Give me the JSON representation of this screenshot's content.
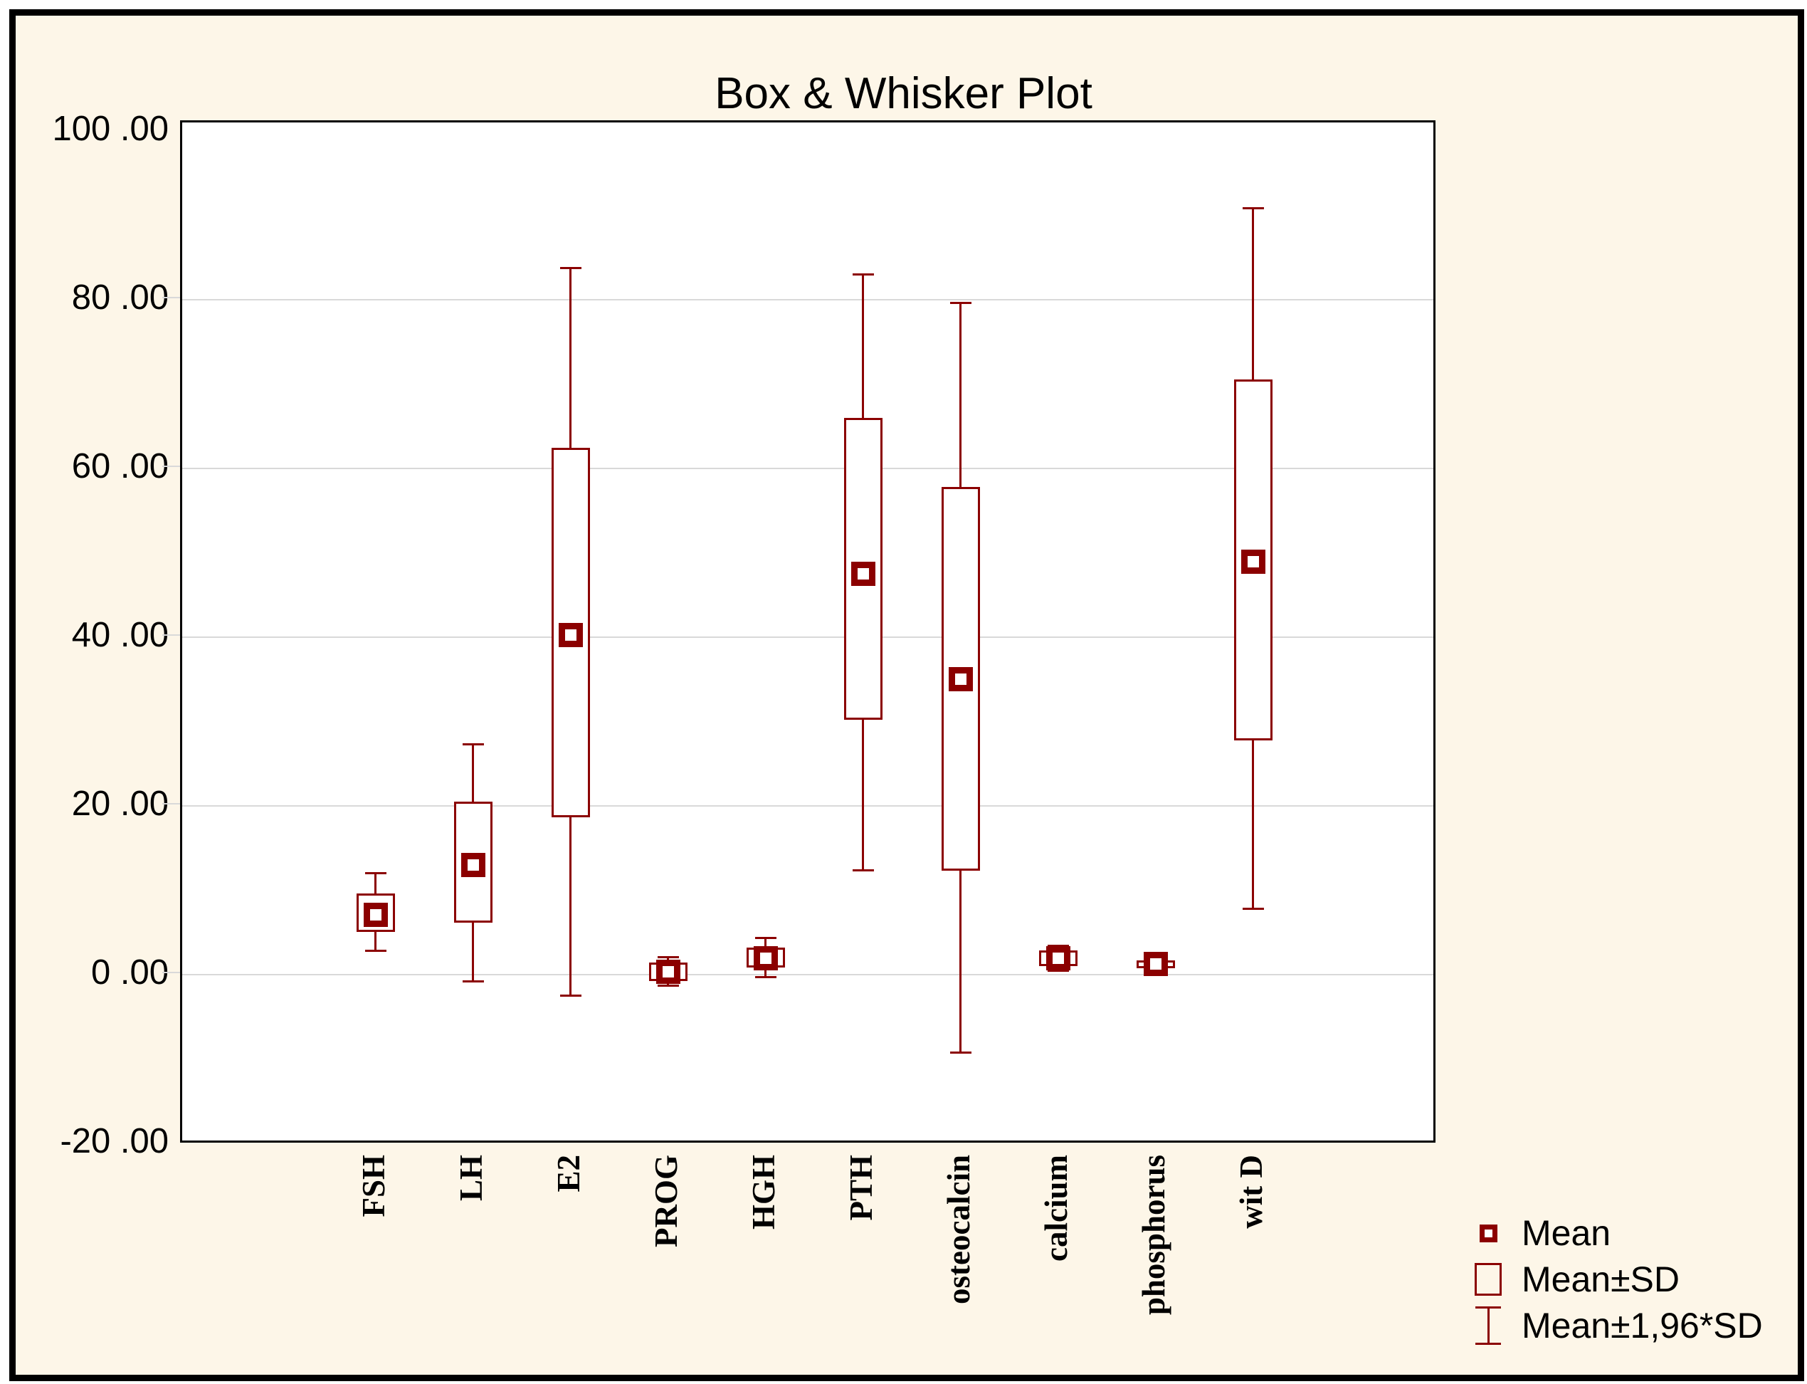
{
  "page": {
    "background_color": "#FDF6E8",
    "frame_border_color": "#000000"
  },
  "chart_data": {
    "type": "box",
    "title": "Box & Whisker Plot",
    "categories": [
      "FSH",
      "LH",
      "E2",
      "PROG",
      "HGH",
      "PTH",
      "osteocalcin",
      "calcium",
      "phosphorus",
      "wit D"
    ],
    "series": [
      {
        "name": "FSH",
        "mean": 7.1,
        "box_low": 5.0,
        "box_high": 9.6,
        "whisker_low": 2.8,
        "whisker_high": 12.0
      },
      {
        "name": "LH",
        "mean": 13.0,
        "box_low": 6.1,
        "box_high": 20.5,
        "whisker_low": -0.8,
        "whisker_high": 27.3
      },
      {
        "name": "E2",
        "mean": 40.2,
        "box_low": 18.6,
        "box_high": 62.4,
        "whisker_low": -2.5,
        "whisker_high": 83.7
      },
      {
        "name": "PROG",
        "mean": 0.35,
        "box_low": -0.8,
        "box_high": 1.4,
        "whisker_low": -1.3,
        "whisker_high": 2.0
      },
      {
        "name": "HGH",
        "mean": 1.9,
        "box_low": 0.8,
        "box_high": 3.2,
        "whisker_low": -0.3,
        "whisker_high": 4.3
      },
      {
        "name": "PTH",
        "mean": 47.5,
        "box_low": 30.2,
        "box_high": 66.0,
        "whisker_low": 12.3,
        "whisker_high": 83.0
      },
      {
        "name": "osteocalcin",
        "mean": 35.0,
        "box_low": 12.3,
        "box_high": 57.8,
        "whisker_low": -9.3,
        "whisker_high": 79.6
      },
      {
        "name": "calcium",
        "mean": 1.9,
        "box_low": 1.0,
        "box_high": 2.8,
        "whisker_low": 0.4,
        "whisker_high": 3.4
      },
      {
        "name": "phosphorus",
        "mean": 1.2,
        "box_low": 0.7,
        "box_high": 1.7,
        "whisker_low": 0.3,
        "whisker_high": 2.1
      },
      {
        "name": "wit D",
        "mean": 48.9,
        "box_low": 27.7,
        "box_high": 70.5,
        "whisker_low": 7.8,
        "whisker_high": 90.8
      }
    ],
    "ylim": [
      -20,
      100
    ],
    "ytick_values": [
      100,
      80,
      60,
      40,
      20,
      0,
      -20
    ],
    "ytick_labels": [
      "100 .00",
      "80 .00",
      "60 .00",
      "40 .00",
      "20 .00",
      "0 .00",
      "-20 .00"
    ],
    "gridline_values": [
      80,
      60,
      40,
      20,
      0
    ],
    "grid": "horizontal",
    "legend_position": "bottom-right",
    "legend": [
      {
        "icon": "mean-marker-icon",
        "label": "Mean"
      },
      {
        "icon": "sd-box-icon",
        "label": "Mean±SD"
      },
      {
        "icon": "whisker-icon",
        "label": "Mean±1,96*SD"
      }
    ],
    "colors": {
      "series": "#8B0000",
      "gridline": "#D9D9D9",
      "panel_background": "#FFFFFF",
      "panel_border": "#000000"
    }
  }
}
